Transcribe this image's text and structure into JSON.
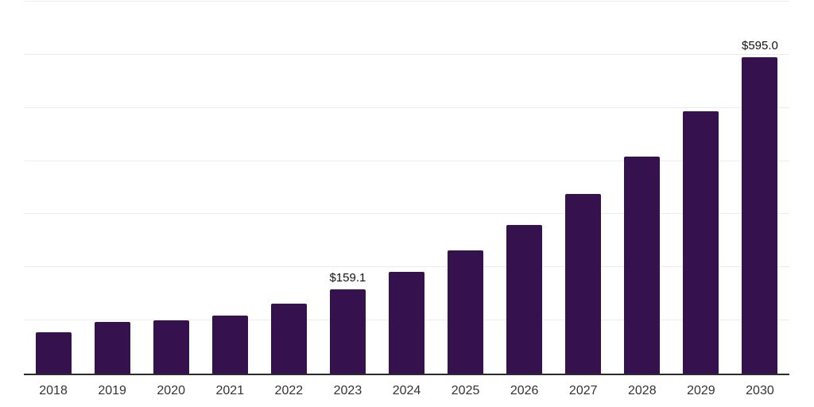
{
  "chart_data": {
    "type": "bar",
    "categories": [
      "2018",
      "2019",
      "2020",
      "2021",
      "2022",
      "2023",
      "2024",
      "2025",
      "2026",
      "2027",
      "2028",
      "2029",
      "2030"
    ],
    "values": [
      77.5,
      97.0,
      100.0,
      109.0,
      131.3,
      159.1,
      192.1,
      232.2,
      280.3,
      338.4,
      408.5,
      493.2,
      595.0
    ],
    "data_labels": {
      "2023": "$159.1",
      "2030": "$595.0"
    },
    "xlabel": "",
    "ylabel": "",
    "ylim": [
      0,
      700
    ],
    "gridline_step": 100,
    "grid": true,
    "legend": false,
    "y_axis_tick_labels_visible": false,
    "colors": {
      "bar": "#35124E",
      "axis_line": "#2b2b2b",
      "gridline": "#ededed",
      "tick_label": "#333333",
      "data_label": "#111111",
      "background": "#ffffff"
    }
  }
}
